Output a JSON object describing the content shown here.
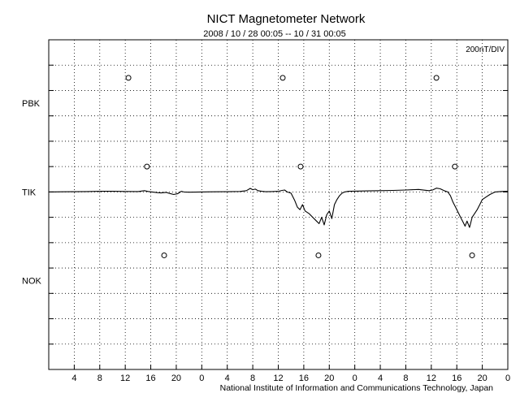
{
  "chart_data": {
    "type": "line",
    "title": "NICT Magnetometer Network",
    "subtitle": "2008 / 10 / 28   00:05 -- 10 / 31   00:05",
    "scale_label": "200nT/DIV",
    "credit": "National Institute of Information and Communications Technology, Japan",
    "grid": true,
    "x_unit": "hours from 2008-10-28 00:05",
    "xlim": [
      0,
      72
    ],
    "x_tick_labels": [
      "4",
      "8",
      "12",
      "16",
      "20",
      "0",
      "4",
      "8",
      "12",
      "16",
      "20",
      "0",
      "4",
      "8",
      "12",
      "16",
      "20",
      "0"
    ],
    "y_stations": [
      "PBK",
      "TIK",
      "NOK"
    ],
    "markers": [
      {
        "station": "PBK",
        "x": [
          12.5,
          36.7,
          60.8
        ]
      },
      {
        "station": "TIK",
        "x": [
          15.4,
          39.5,
          63.7
        ]
      },
      {
        "station": "NOK",
        "x": [
          18.1,
          42.3,
          66.4
        ]
      }
    ],
    "series": [
      {
        "station": "TIK",
        "x": [
          0,
          2,
          4,
          6,
          8,
          10,
          12,
          14,
          15,
          15.6,
          16.2,
          17,
          17.6,
          18.4,
          19,
          19.6,
          20.2,
          20.8,
          21.2,
          22,
          24,
          26,
          28,
          30,
          31,
          31.6,
          32,
          32.4,
          32.8,
          33.4,
          34,
          35,
          36,
          36.6,
          37,
          37.4,
          38,
          38.6,
          39,
          39.4,
          39.8,
          40.2,
          40.8,
          41.4,
          42,
          42.4,
          42.8,
          43.2,
          43.6,
          44,
          44.4,
          44.8,
          45.2,
          45.6,
          46,
          46.4,
          47,
          48,
          50,
          52,
          54,
          56,
          58,
          59.6,
          60.2,
          60.8,
          61.4,
          62,
          62.6,
          63,
          63.4,
          63.8,
          64.2,
          64.6,
          65,
          65.3,
          65.6,
          66,
          66.4,
          66.8,
          67.2,
          67.6,
          68,
          68.6,
          69.2,
          70,
          71,
          72
        ],
        "values": [
          0,
          1,
          2,
          3,
          5,
          5,
          4,
          3,
          10,
          4,
          0,
          -5,
          -8,
          -3,
          -12,
          -20,
          -14,
          5,
          0,
          -2,
          0,
          1,
          2,
          4,
          10,
          28,
          18,
          22,
          10,
          5,
          2,
          3,
          5,
          12,
          15,
          0,
          -10,
          -70,
          -120,
          -140,
          -100,
          -150,
          -170,
          -200,
          -230,
          -250,
          -200,
          -260,
          -180,
          -150,
          -210,
          -100,
          -60,
          -30,
          -10,
          0,
          5,
          6,
          8,
          10,
          12,
          15,
          20,
          10,
          15,
          30,
          25,
          10,
          0,
          -30,
          -80,
          -120,
          -160,
          -200,
          -240,
          -270,
          -230,
          -280,
          -200,
          -170,
          -140,
          -100,
          -60,
          -40,
          -20,
          0,
          4,
          5
        ]
      }
    ]
  }
}
